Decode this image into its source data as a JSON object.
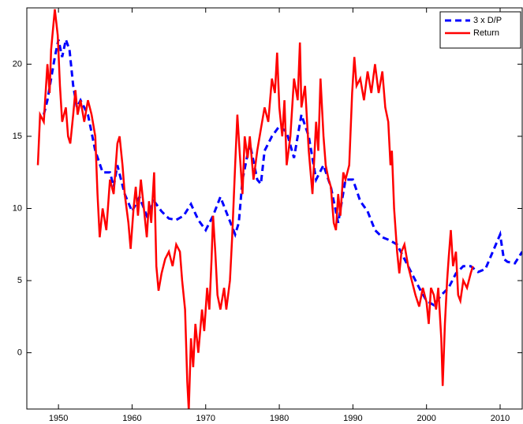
{
  "chart_data": {
    "type": "line",
    "xlim": [
      1945.7,
      2013
    ],
    "xticks": [
      1950,
      1960,
      1970,
      1980,
      1990,
      2000,
      2010
    ],
    "ylim": [
      -3.9,
      23.9
    ],
    "yticks": [
      0,
      5,
      10,
      15,
      20
    ],
    "legend": "northeast",
    "grid": false,
    "series": [
      {
        "name": "3 x D/P",
        "color": "#0000ff",
        "dash": true,
        "x": [
          1948,
          1948.5,
          1949,
          1949.5,
          1950,
          1950.5,
          1951,
          1951.5,
          1952,
          1952.5,
          1953,
          1954,
          1955,
          1956,
          1957,
          1957.5,
          1958,
          1959,
          1960,
          1961,
          1962,
          1963,
          1964,
          1965,
          1966,
          1967,
          1968,
          1969,
          1970,
          1971,
          1972,
          1973,
          1974,
          1974.5,
          1975,
          1976,
          1977,
          1977.5,
          1978,
          1979,
          1980,
          1981,
          1982,
          1983,
          1984,
          1985,
          1986,
          1987,
          1988,
          1989,
          1990,
          1991,
          1992,
          1993,
          1994,
          1995,
          1996,
          1997,
          1998,
          1999,
          2000,
          2001,
          2002,
          2003,
          2004,
          2005,
          2006,
          2007,
          2008,
          2009,
          2010,
          2010.5,
          2011,
          2012,
          2013
        ],
        "values": [
          16.5,
          17.5,
          19,
          20.5,
          21.7,
          20.5,
          21.7,
          21,
          18.5,
          17,
          17.5,
          16.5,
          14,
          12.5,
          12.5,
          11.5,
          13,
          11,
          9.8,
          10.8,
          9.5,
          10.5,
          9.8,
          9.3,
          9.2,
          9.5,
          10.3,
          9.2,
          8.5,
          9.5,
          10.8,
          9.5,
          8.2,
          9,
          12,
          14.5,
          12,
          11.7,
          14,
          15,
          15.7,
          15.3,
          13.5,
          16.5,
          15,
          12,
          13,
          11.5,
          9,
          12,
          12,
          10.5,
          9.8,
          8.5,
          8,
          7.8,
          7.5,
          6.5,
          5.5,
          4.5,
          3.6,
          3.3,
          4,
          4.5,
          5.5,
          6,
          6,
          5.6,
          5.8,
          7,
          8.2,
          6.5,
          6.3,
          6.2,
          7
        ]
      },
      {
        "name": "Return",
        "color": "#ff0000",
        "dash": false,
        "x": [
          1947.2,
          1947.5,
          1948,
          1948.5,
          1948.8,
          1949,
          1949.5,
          1949.9,
          1950.2,
          1950.5,
          1951,
          1951.3,
          1951.6,
          1952,
          1952.3,
          1952.6,
          1953,
          1953.5,
          1954,
          1954.5,
          1955,
          1955.3,
          1955.6,
          1956,
          1956.5,
          1957,
          1957.5,
          1958,
          1958.3,
          1958.7,
          1959,
          1959.5,
          1959.8,
          1960.2,
          1960.5,
          1960.8,
          1961.2,
          1961.6,
          1962,
          1962.3,
          1962.6,
          1963,
          1963.3,
          1963.6,
          1964,
          1964.5,
          1965,
          1965.5,
          1966,
          1966.5,
          1966.8,
          1967.2,
          1967.5,
          1967.7,
          1968,
          1968.3,
          1968.6,
          1969,
          1969.5,
          1969.8,
          1970.2,
          1970.5,
          1970.8,
          1971,
          1971.3,
          1971.6,
          1972,
          1972.5,
          1972.8,
          1973.3,
          1973.6,
          1974,
          1974.3,
          1974.6,
          1975,
          1975.3,
          1975.7,
          1976,
          1976.5,
          1977,
          1977.5,
          1978,
          1978.5,
          1979,
          1979.4,
          1979.7,
          1980,
          1980.4,
          1980.7,
          1981,
          1981.5,
          1982,
          1982.5,
          1982.8,
          1983,
          1983.5,
          1984,
          1984.5,
          1985,
          1985.3,
          1985.6,
          1986,
          1986.3,
          1986.7,
          1987,
          1987.4,
          1987.7,
          1988,
          1988.3,
          1988.7,
          1989,
          1989.5,
          1989.9,
          1990.2,
          1990.5,
          1991,
          1991.5,
          1992,
          1992.5,
          1993,
          1993.5,
          1994,
          1994.4,
          1994.8,
          1995.1,
          1995.3,
          1995.6,
          1996,
          1996.3,
          1996.6,
          1997,
          1997.5,
          1998,
          1998.5,
          1999,
          1999.5,
          2000,
          2000.3,
          2000.6,
          2001,
          2001.3,
          2001.6,
          2002,
          2002.2,
          2002.5,
          2002.8,
          2003,
          2003.3,
          2003.6,
          2004,
          2004.3,
          2004.6,
          2005,
          2005.5,
          2006,
          2006.3
        ],
        "values": [
          13,
          16.5,
          16,
          20,
          18,
          21,
          23.8,
          22,
          18.5,
          16,
          17,
          15,
          14.5,
          16.5,
          18.2,
          16.5,
          17.5,
          16,
          17.5,
          16.5,
          15,
          11,
          8,
          10,
          8.5,
          12,
          11,
          14.5,
          15,
          13,
          11,
          9,
          7.2,
          10,
          11.5,
          9.5,
          12,
          10,
          8,
          10.5,
          9,
          12.5,
          6,
          4.3,
          5.5,
          6.5,
          7,
          6,
          7.5,
          7,
          5,
          3,
          -2,
          -4,
          1,
          -1,
          2,
          0,
          3,
          1.5,
          4.5,
          3,
          6.5,
          9.5,
          7,
          4,
          3,
          4.5,
          3,
          5,
          8,
          13,
          16.5,
          14,
          11,
          15,
          13.5,
          15,
          12,
          14,
          15.5,
          17,
          16,
          19,
          18,
          20.8,
          17,
          15,
          17.5,
          13,
          15,
          19,
          17.5,
          21.5,
          17,
          18.5,
          14,
          11,
          16,
          14,
          19,
          15,
          13,
          12,
          11.5,
          9,
          8.5,
          11,
          9.5,
          12.5,
          12,
          13,
          18,
          20.5,
          18.5,
          19,
          17.5,
          19.5,
          18,
          20,
          18,
          19.5,
          17,
          16,
          13,
          14,
          10,
          7,
          5.5,
          7,
          7.5,
          6,
          5,
          4,
          3.2,
          4.5,
          3.5,
          2,
          4.5,
          4,
          3,
          4.5,
          1,
          -2.3,
          2,
          5,
          6.5,
          8.5,
          6,
          7,
          4,
          3.6,
          5,
          4.5,
          5.5,
          6
        ]
      }
    ]
  }
}
